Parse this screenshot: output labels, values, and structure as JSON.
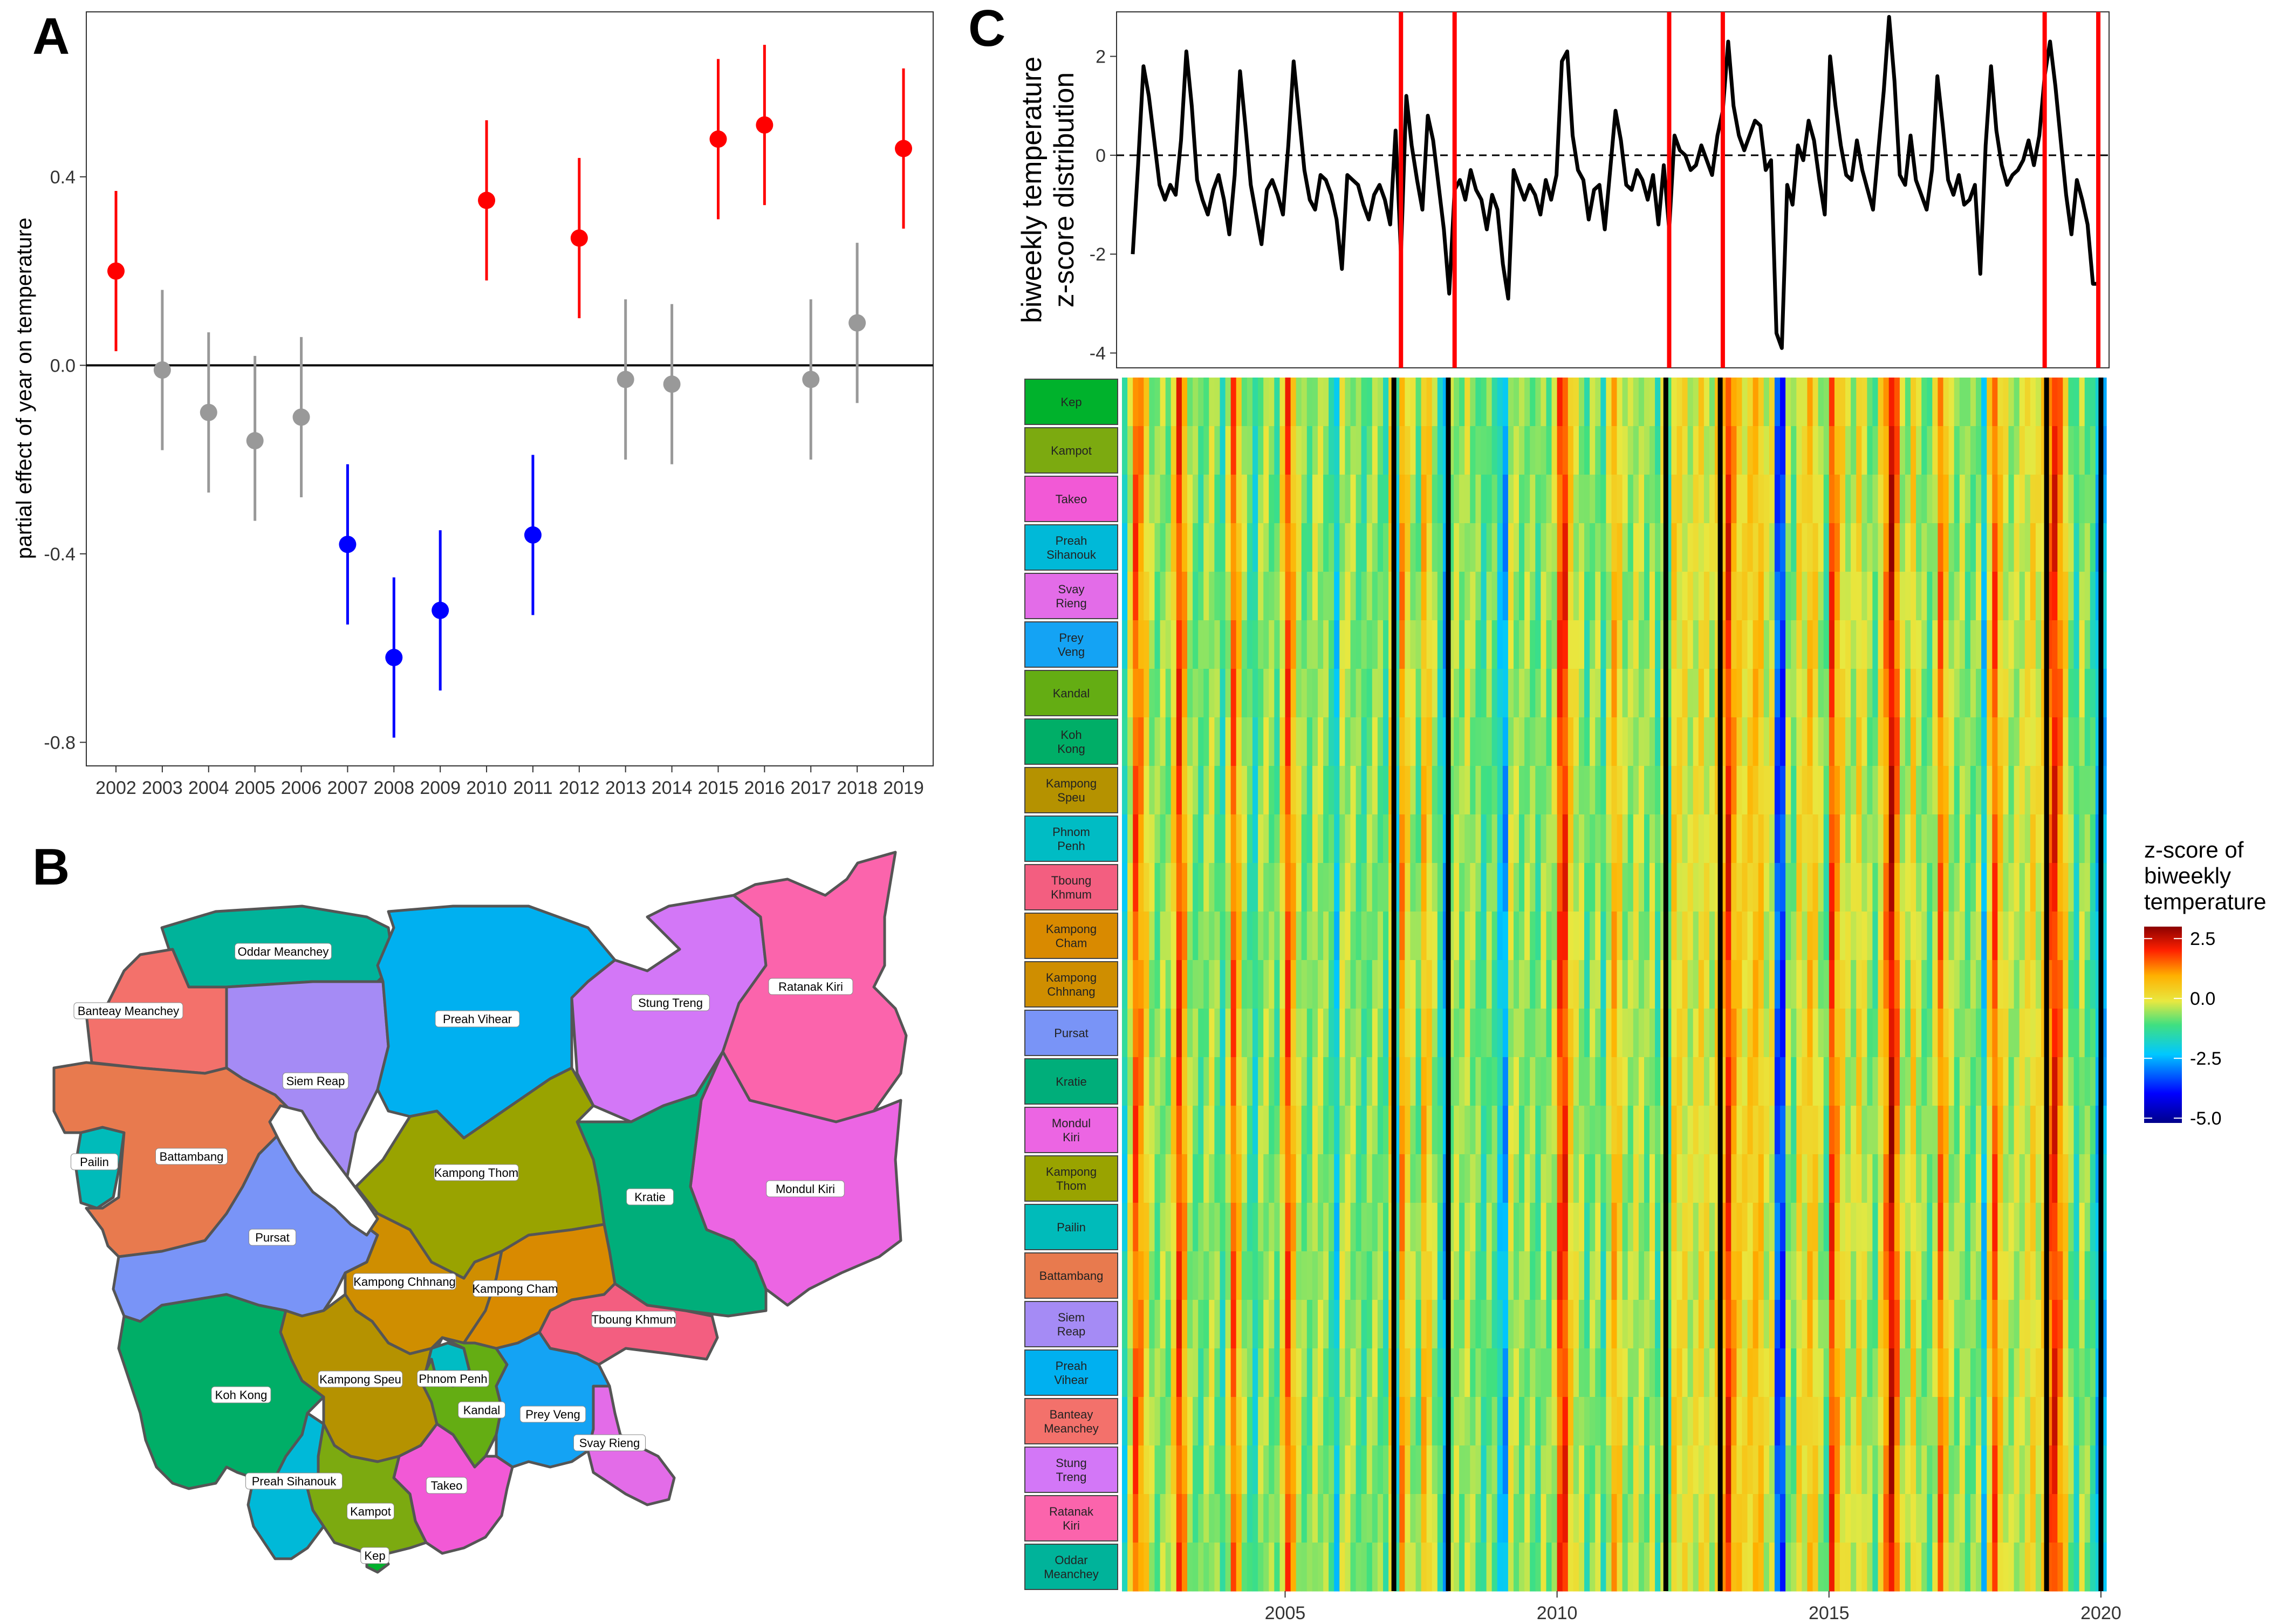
{
  "panels": {
    "a": "A",
    "b": "B",
    "c": "C"
  },
  "colors": {
    "positive": "#ff0000",
    "negative": "#0000ff",
    "neutral": "#999999",
    "event_line": "#ff0000"
  },
  "chart_data": [
    {
      "id": "A",
      "type": "scatter",
      "title": "",
      "xlabel": "",
      "ylabel": "partial effect of year on temperature",
      "categories": [
        "2002",
        "2003",
        "2004",
        "2005",
        "2006",
        "2007",
        "2008",
        "2009",
        "2010",
        "2011",
        "2012",
        "2013",
        "2014",
        "2015",
        "2016",
        "2017",
        "2018",
        "2019"
      ],
      "series": [
        {
          "estimate": [
            0.2,
            -0.01,
            -0.1,
            -0.16,
            -0.11,
            -0.38,
            -0.62,
            -0.52,
            0.35,
            -0.36,
            0.27,
            -0.03,
            -0.04,
            0.48,
            0.51,
            -0.03,
            0.09,
            0.46
          ],
          "lower": [
            0.03,
            -0.18,
            -0.27,
            -0.33,
            -0.28,
            -0.55,
            -0.79,
            -0.69,
            0.18,
            -0.53,
            0.1,
            -0.2,
            -0.21,
            0.31,
            0.34,
            -0.2,
            -0.08,
            0.29
          ],
          "upper": [
            0.37,
            0.16,
            0.07,
            0.02,
            0.06,
            -0.21,
            -0.45,
            -0.35,
            0.52,
            -0.19,
            0.44,
            0.14,
            0.13,
            0.65,
            0.68,
            0.14,
            0.26,
            0.63
          ],
          "significance": [
            "pos",
            "ns",
            "ns",
            "ns",
            "ns",
            "neg",
            "neg",
            "neg",
            "pos",
            "neg",
            "pos",
            "ns",
            "ns",
            "pos",
            "pos",
            "ns",
            "ns",
            "pos"
          ]
        }
      ],
      "yticks": [
        "-0.8",
        "-0.4",
        "0.0",
        "0.4"
      ],
      "ylim": [
        -0.85,
        0.75
      ],
      "reference_line": 0
    },
    {
      "id": "C-top",
      "type": "line",
      "ylabel": [
        "biweekly temperature",
        "z-score distribution"
      ],
      "yticks": [
        "-4",
        "-2",
        "0",
        "2"
      ],
      "ylim": [
        -4.3,
        2.9
      ],
      "xlim": [
        2002,
        2020.1
      ],
      "x": [
        2002.0,
        2002.1,
        2002.2,
        2002.3,
        2002.4,
        2002.5,
        2002.6,
        2002.7,
        2002.8,
        2002.9,
        2003.0,
        2003.1,
        2003.2,
        2003.3,
        2003.4,
        2003.5,
        2003.6,
        2003.7,
        2003.8,
        2003.9,
        2004.0,
        2004.1,
        2004.2,
        2004.3,
        2004.4,
        2004.5,
        2004.6,
        2004.7,
        2004.8,
        2004.9,
        2005.0,
        2005.1,
        2005.2,
        2005.3,
        2005.4,
        2005.5,
        2005.6,
        2005.7,
        2005.8,
        2005.9,
        2006.0,
        2006.1,
        2006.2,
        2006.3,
        2006.4,
        2006.5,
        2006.6,
        2006.7,
        2006.8,
        2006.9,
        2007.0,
        2007.1,
        2007.2,
        2007.3,
        2007.4,
        2007.5,
        2007.6,
        2007.7,
        2007.8,
        2007.9,
        2008.0,
        2008.1,
        2008.2,
        2008.3,
        2008.4,
        2008.5,
        2008.6,
        2008.7,
        2008.8,
        2008.9,
        2009.0,
        2009.1,
        2009.2,
        2009.3,
        2009.4,
        2009.5,
        2009.6,
        2009.7,
        2009.8,
        2009.9,
        2010.0,
        2010.1,
        2010.2,
        2010.3,
        2010.4,
        2010.5,
        2010.6,
        2010.7,
        2010.8,
        2010.9,
        2011.0,
        2011.1,
        2011.2,
        2011.3,
        2011.4,
        2011.5,
        2011.6,
        2011.7,
        2011.8,
        2011.9,
        2012.0,
        2012.1,
        2012.2,
        2012.3,
        2012.4,
        2012.5,
        2012.6,
        2012.7,
        2012.8,
        2012.9,
        2013.0,
        2013.1,
        2013.2,
        2013.3,
        2013.4,
        2013.5,
        2013.6,
        2013.7,
        2013.8,
        2013.9,
        2014.0,
        2014.1,
        2014.2,
        2014.3,
        2014.4,
        2014.5,
        2014.6,
        2014.7,
        2014.8,
        2014.9,
        2015.0,
        2015.1,
        2015.2,
        2015.3,
        2015.4,
        2015.5,
        2015.6,
        2015.7,
        2015.8,
        2015.9,
        2016.0,
        2016.1,
        2016.2,
        2016.3,
        2016.4,
        2016.5,
        2016.6,
        2016.7,
        2016.8,
        2016.9,
        2017.0,
        2017.1,
        2017.2,
        2017.3,
        2017.4,
        2017.5,
        2017.6,
        2017.7,
        2017.8,
        2017.9,
        2018.0,
        2018.1,
        2018.2,
        2018.3,
        2018.4,
        2018.5,
        2018.6,
        2018.7,
        2018.8,
        2018.9,
        2019.0,
        2019.1,
        2019.2,
        2019.3,
        2019.4,
        2019.5,
        2019.6,
        2019.7,
        2019.8,
        2019.9,
        2020.0
      ],
      "y": [
        -2.0,
        -0.2,
        1.8,
        1.2,
        0.3,
        -0.6,
        -0.9,
        -0.6,
        -0.8,
        0.3,
        2.1,
        1.0,
        -0.5,
        -0.9,
        -1.2,
        -0.7,
        -0.4,
        -0.9,
        -1.6,
        -0.4,
        1.7,
        0.6,
        -0.6,
        -1.2,
        -1.8,
        -0.7,
        -0.5,
        -0.8,
        -1.2,
        0.2,
        1.9,
        0.8,
        -0.3,
        -0.9,
        -1.1,
        -0.4,
        -0.5,
        -0.8,
        -1.3,
        -2.3,
        -0.4,
        -0.5,
        -0.6,
        -1.0,
        -1.3,
        -0.8,
        -0.6,
        -0.9,
        -1.4,
        0.5,
        -2.0,
        1.2,
        0.2,
        -0.5,
        -1.1,
        0.8,
        0.3,
        -0.6,
        -1.5,
        -2.8,
        -0.7,
        -0.5,
        -0.9,
        -0.3,
        -0.7,
        -0.9,
        -1.5,
        -0.8,
        -1.1,
        -2.2,
        -2.9,
        -0.3,
        -0.6,
        -0.9,
        -0.6,
        -0.8,
        -1.2,
        -0.5,
        -0.9,
        -0.4,
        1.9,
        2.1,
        0.4,
        -0.3,
        -0.5,
        -1.3,
        -0.7,
        -0.6,
        -1.5,
        -0.3,
        0.9,
        0.3,
        -0.6,
        -0.7,
        -0.3,
        -0.5,
        -0.9,
        -0.4,
        -1.4,
        -0.2,
        -1.5,
        0.4,
        0.1,
        0.0,
        -0.3,
        -0.2,
        0.2,
        -0.1,
        -0.4,
        0.4,
        0.9,
        2.3,
        1.0,
        0.4,
        0.1,
        0.4,
        0.7,
        0.6,
        -0.3,
        -0.1,
        -3.6,
        -3.9,
        -0.6,
        -1.0,
        0.2,
        -0.1,
        0.7,
        0.3,
        -0.5,
        -1.2,
        2.0,
        1.0,
        0.2,
        -0.4,
        -0.5,
        0.3,
        -0.3,
        -0.7,
        -1.1,
        0.1,
        1.3,
        2.8,
        1.5,
        -0.4,
        -0.6,
        0.4,
        -0.5,
        -0.8,
        -1.1,
        -0.3,
        1.6,
        0.6,
        -0.5,
        -0.8,
        -0.4,
        -1.0,
        -0.9,
        -0.6,
        -2.4,
        0.2,
        1.8,
        0.5,
        -0.2,
        -0.6,
        -0.4,
        -0.3,
        -0.1,
        0.3,
        -0.2,
        0.4,
        1.6,
        2.3,
        1.4,
        0.3,
        -0.8,
        -1.6,
        -0.5,
        -0.9,
        -1.4,
        -2.6,
        -2.6
      ],
      "reference_line": 0,
      "event_lines": [
        2007.0,
        2008.0,
        2012.0,
        2013.0,
        2019.0,
        2020.0
      ]
    },
    {
      "id": "C-heatmap",
      "type": "heatmap",
      "title": "",
      "xticks": [
        "2005",
        "2010",
        "2015",
        "2020"
      ],
      "xlim": [
        2002,
        2020.1
      ],
      "rows": [
        "Kep",
        "Kampot",
        "Takeo",
        "Preah Sihanouk",
        "Svay Rieng",
        "Prey Veng",
        "Kandal",
        "Koh Kong",
        "Kampong Speu",
        "Phnom Penh",
        "Tboung Khmum",
        "Kampong Cham",
        "Kampong Chhnang",
        "Pursat",
        "Kratie",
        "Mondul Kiri",
        "Kampong Thom",
        "Pailin",
        "Battambang",
        "Siem Reap",
        "Preah Vihear",
        "Banteay Meanchey",
        "Stung Treng",
        "Ratanak Kiri",
        "Oddar Meanchey"
      ],
      "row_labels": [
        "Kep",
        "Kampot",
        "Takeo",
        "Preah\nSihanouk",
        "Svay\nRieng",
        "Prey\nVeng",
        "Kandal",
        "Koh\nKong",
        "Kampong\nSpeu",
        "Phnom\nPenh",
        "Tboung\nKhmum",
        "Kampong\nCham",
        "Kampong\nChhnang",
        "Pursat",
        "Kratie",
        "Mondul\nKiri",
        "Kampong\nThom",
        "Pailin",
        "Battambang",
        "Siem\nReap",
        "Preah\nVihear",
        "Banteay\nMeanchey",
        "Stung\nTreng",
        "Ratanak\nKiri",
        "Oddar\nMeanchey"
      ],
      "row_colors": [
        "#00b22c",
        "#7caa10",
        "#f259d6",
        "#00b9d8",
        "#e36ce8",
        "#14a3f4",
        "#64ad13",
        "#00ae67",
        "#b59200",
        "#00bcc4",
        "#f35e80",
        "#d98a00",
        "#cf8e00",
        "#7994f7",
        "#00ae7a",
        "#ec65e3",
        "#99a300",
        "#00bbba",
        "#e87a4e",
        "#a58bf5",
        "#00b0f0",
        "#f3716b",
        "#d377f7",
        "#fb64ac",
        "#00b39a"
      ],
      "legend": {
        "title": "z-score of\nbiweekly\ntemperature",
        "ticks": [
          "2.5",
          "0.0",
          "-2.5",
          "-5.0"
        ],
        "range": [
          -5.2,
          3.0
        ]
      },
      "event_lines": [
        2007.0,
        2008.0,
        2012.0,
        2013.0,
        2019.0,
        2020.0
      ],
      "column_pattern_of_z": "derived from C-top series"
    }
  ],
  "map": {
    "provinces": [
      {
        "name": "Oddar Meanchey",
        "color": "#00b39a"
      },
      {
        "name": "Banteay Meanchey",
        "color": "#f3716b"
      },
      {
        "name": "Siem Reap",
        "color": "#a58bf5"
      },
      {
        "name": "Preah Vihear",
        "color": "#00b0f0"
      },
      {
        "name": "Stung Treng",
        "color": "#d377f7"
      },
      {
        "name": "Ratanak Kiri",
        "color": "#fb64ac"
      },
      {
        "name": "Pailin",
        "color": "#00bbba"
      },
      {
        "name": "Battambang",
        "color": "#e87a4e"
      },
      {
        "name": "Kampong Thom",
        "color": "#99a300"
      },
      {
        "name": "Kratie",
        "color": "#00ae7a"
      },
      {
        "name": "Mondul Kiri",
        "color": "#ec65e3"
      },
      {
        "name": "Pursat",
        "color": "#7994f7"
      },
      {
        "name": "Kampong Chhnang",
        "color": "#cf8e00"
      },
      {
        "name": "Kampong Cham",
        "color": "#d98a00"
      },
      {
        "name": "Tboung Khmum",
        "color": "#f35e80"
      },
      {
        "name": "Koh Kong",
        "color": "#00ae67"
      },
      {
        "name": "Kampong Speu",
        "color": "#b59200"
      },
      {
        "name": "Phnom Penh",
        "color": "#00bcc4"
      },
      {
        "name": "Kandal",
        "color": "#64ad13"
      },
      {
        "name": "Prey Veng",
        "color": "#14a3f4"
      },
      {
        "name": "Svay Rieng",
        "color": "#e36ce8"
      },
      {
        "name": "Preah Sihanouk",
        "color": "#00b9d8"
      },
      {
        "name": "Kampot",
        "color": "#7caa10"
      },
      {
        "name": "Takeo",
        "color": "#f259d6"
      },
      {
        "name": "Kep",
        "color": "#00b22c"
      }
    ]
  }
}
